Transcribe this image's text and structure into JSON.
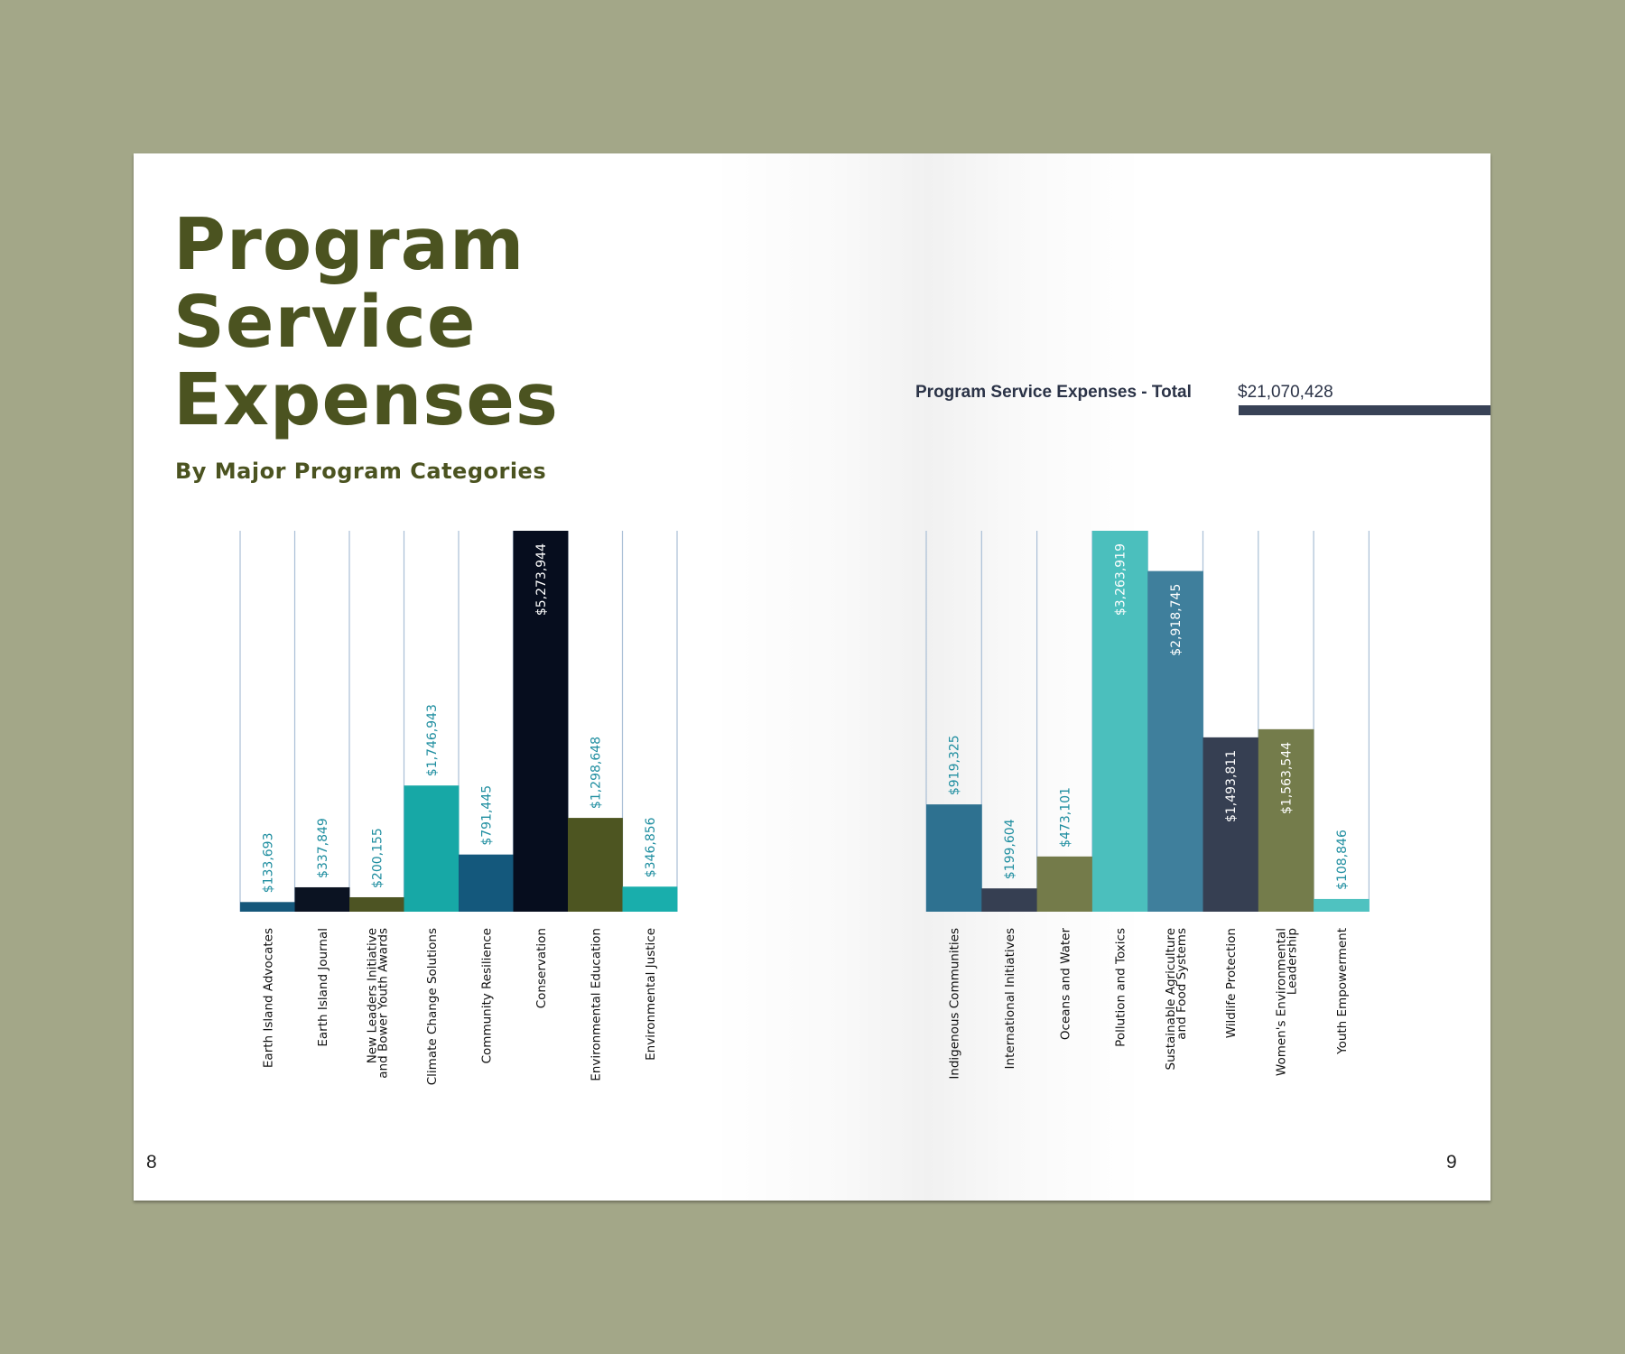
{
  "title_lines": [
    "Program",
    "Service",
    "Expenses"
  ],
  "subtitle": "By Major Program Categories",
  "total": {
    "label": "Program Service Expenses - Total",
    "value": "$21,070,428"
  },
  "page_numbers": {
    "left": "8",
    "right": "9"
  },
  "chart_data": [
    {
      "type": "bar",
      "categories": [
        "Earth Island Advocates",
        "Earth Island Journal",
        "New Leaders Initiative and Bower Youth Awards",
        "Climate Change Solutions",
        "Community Resilience",
        "Conservation",
        "Environmental Education",
        "Environmental Justice"
      ],
      "category_lines": [
        [
          "Earth Island Advocates"
        ],
        [
          "Earth Island Journal"
        ],
        [
          "New Leaders Initiative",
          "and Bower Youth Awards"
        ],
        [
          "Climate Change Solutions"
        ],
        [
          "Community Resilience"
        ],
        [
          "Conservation"
        ],
        [
          "Environmental Education"
        ],
        [
          "Environmental Justice"
        ]
      ],
      "values": [
        133693,
        337849,
        200155,
        1746943,
        791445,
        5273944,
        1298648,
        346856
      ],
      "value_labels": [
        "$133,693",
        "$337,849",
        "$200,155",
        "$1,746,943",
        "$791,445",
        "$5,273,944",
        "$1,298,648",
        "$346,856"
      ],
      "colors": [
        "#15577a",
        "#0b1322",
        "#4d5423",
        "#17a8a6",
        "#14587c",
        "#060d1e",
        "#4d5521",
        "#19aeac"
      ],
      "ylim": [
        0,
        5273944
      ],
      "grid": true
    },
    {
      "type": "bar",
      "categories": [
        "Indigenous Communities",
        "International Initiatives",
        "Oceans and Water",
        "Pollution and Toxics",
        "Sustainable Agriculture and Food Systems",
        "Wildlife Protection",
        "Women's Environmental Leadership",
        "Youth Empowerment"
      ],
      "category_lines": [
        [
          "Indigenous Communities"
        ],
        [
          "International Initiatives"
        ],
        [
          "Oceans and Water"
        ],
        [
          "Pollution and Toxics"
        ],
        [
          "Sustainable Agriculture",
          "and Food Systems"
        ],
        [
          "Wildlife Protection"
        ],
        [
          "Women's Environmental",
          "Leadership"
        ],
        [
          "Youth Empowerment"
        ]
      ],
      "values": [
        919325,
        199604,
        473101,
        3263919,
        2918745,
        1493811,
        1563544,
        108846
      ],
      "value_labels": [
        "$919,325",
        "$199,604",
        "$473,101",
        "$3,263,919",
        "$2,918,745",
        "$1,493,811",
        "$1,563,544",
        "$108,846"
      ],
      "colors": [
        "#2e7190",
        "#363f52",
        "#747b4a",
        "#4bbfbd",
        "#3f7f9c",
        "#363f52",
        "#747c4b",
        "#4fc2c0"
      ],
      "ylim": [
        0,
        3263919
      ],
      "grid": true
    }
  ]
}
